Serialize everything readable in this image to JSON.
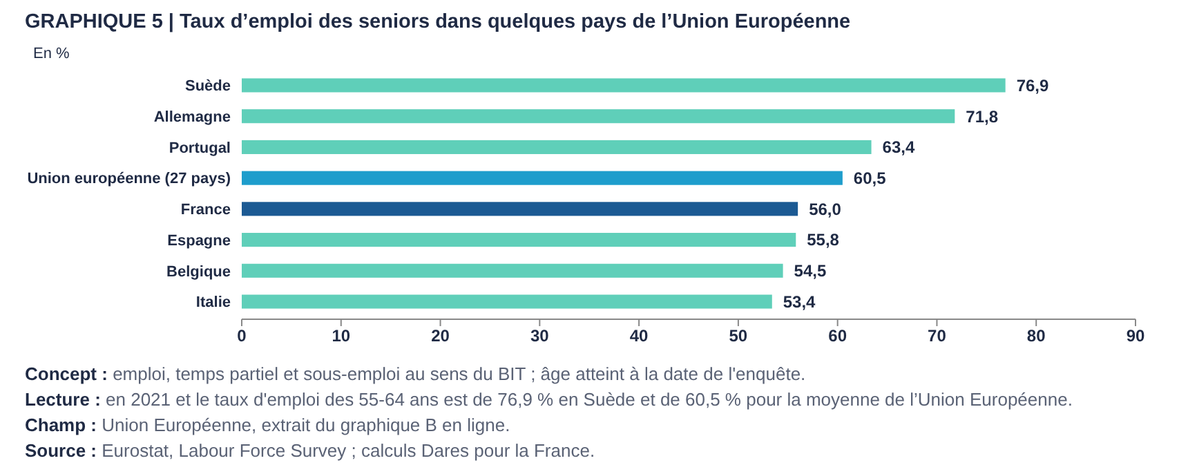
{
  "chart_data": {
    "type": "bar",
    "orientation": "horizontal",
    "title": "GRAPHIQUE 5 | Taux d’emploi des seniors dans quelques pays de l’Union Européenne",
    "xlabel": "En %",
    "categories": [
      "Suède",
      "Allemagne",
      "Portugal",
      "Union européenne (27 pays)",
      "France",
      "Espagne",
      "Belgique",
      "Italie"
    ],
    "values": [
      76.9,
      71.8,
      63.4,
      60.5,
      56.0,
      55.8,
      54.5,
      53.4
    ],
    "value_labels": [
      "76,9",
      "71,8",
      "63,4",
      "60,5",
      "56,0",
      "55,8",
      "54,5",
      "53,4"
    ],
    "colors": [
      "#5fcfb9",
      "#5fcfb9",
      "#5fcfb9",
      "#1e9dcc",
      "#1c5a93",
      "#5fcfb9",
      "#5fcfb9",
      "#5fcfb9"
    ],
    "xlim": [
      0,
      90
    ],
    "xticks": [
      0,
      10,
      20,
      30,
      40,
      50,
      60,
      70,
      80,
      90
    ],
    "grid": false,
    "annotations": [
      "Concept : emploi, temps partiel et sous-emploi au sens du BIT ; âge atteint à la date de l'enquête.",
      "Lecture : en 2021 et le taux d'emploi des 55-64 ans est de 76,9 % en Suède et de 60,5 % pour la moyenne de l’Union Européenne.",
      "Champ : Union Européenne, extrait du graphique B en ligne.",
      "Source : Eurostat, Labour Force Survey ; calculs Dares pour la France."
    ]
  }
}
